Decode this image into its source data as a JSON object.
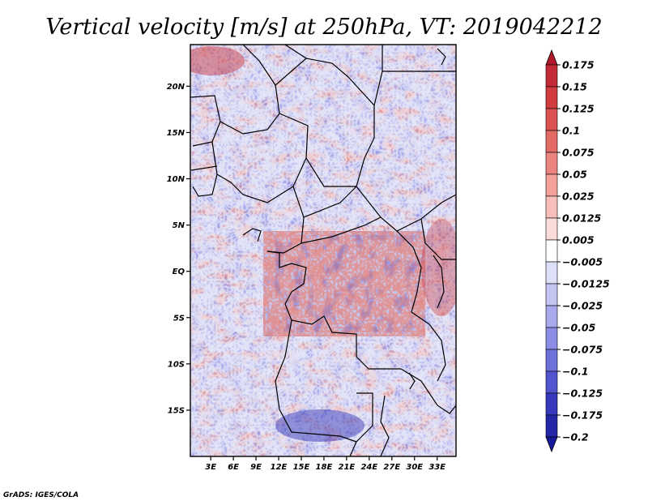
{
  "title": "Vertical velocity [m/s] at 250hPa, VT: 2019042212",
  "credit": "GrADS: IGES/COLA",
  "map": {
    "lon_min": 0.3,
    "lon_max": 35.5,
    "lat_min": -20.0,
    "lat_max": 24.5,
    "lon_ticks": [
      {
        "value": 3,
        "label": "3E"
      },
      {
        "value": 6,
        "label": "6E"
      },
      {
        "value": 9,
        "label": "9E"
      },
      {
        "value": 12,
        "label": "12E"
      },
      {
        "value": 15,
        "label": "15E"
      },
      {
        "value": 18,
        "label": "18E"
      },
      {
        "value": 21,
        "label": "21E"
      },
      {
        "value": 24,
        "label": "24E"
      },
      {
        "value": 27,
        "label": "27E"
      },
      {
        "value": 30,
        "label": "30E"
      },
      {
        "value": 33,
        "label": "33E"
      }
    ],
    "lat_ticks": [
      {
        "value": 20,
        "label": "20N"
      },
      {
        "value": 15,
        "label": "15N"
      },
      {
        "value": 10,
        "label": "10N"
      },
      {
        "value": 5,
        "label": "5N"
      },
      {
        "value": 0,
        "label": "EQ"
      },
      {
        "value": -5,
        "label": "5S"
      },
      {
        "value": -10,
        "label": "10S"
      },
      {
        "value": -15,
        "label": "15S"
      }
    ],
    "field": "vertical velocity",
    "units": "m/s",
    "level": "250hPa"
  },
  "colorbar": {
    "labels": [
      "0.175",
      "0.15",
      "0.125",
      "0.1",
      "0.075",
      "0.05",
      "0.025",
      "0.0125",
      "0.005",
      "−0.005",
      "−0.0125",
      "−0.025",
      "−0.05",
      "−0.075",
      "−0.1",
      "−0.125",
      "−0.175",
      "−0.2"
    ],
    "colors": [
      "#b2182b",
      "#c42a35",
      "#d13c3f",
      "#dc5252",
      "#e46a66",
      "#ec8480",
      "#f3a09b",
      "#f8bfba",
      "#fcdcd8",
      "#ffffff",
      "#dedff9",
      "#c3c4f2",
      "#a8a9ec",
      "#8b8de5",
      "#6e70dc",
      "#5254cf",
      "#3638bd",
      "#2326a6",
      "#18199a"
    ]
  },
  "colors": {
    "ocean_base": "#b4b8f0",
    "land_base": "#c8c4ec",
    "border": "#000000"
  }
}
